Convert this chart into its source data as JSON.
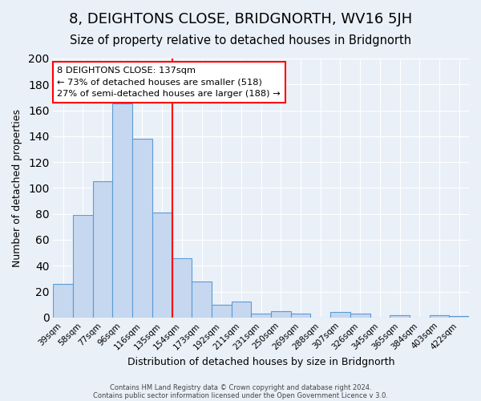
{
  "title": "8, DEIGHTONS CLOSE, BRIDGNORTH, WV16 5JH",
  "subtitle": "Size of property relative to detached houses in Bridgnorth",
  "xlabel": "Distribution of detached houses by size in Bridgnorth",
  "ylabel": "Number of detached properties",
  "footer_line1": "Contains HM Land Registry data © Crown copyright and database right 2024.",
  "footer_line2": "Contains public sector information licensed under the Open Government Licence v 3.0.",
  "annotation_title": "8 DEIGHTONS CLOSE: 137sqm",
  "annotation_line1": "← 73% of detached houses are smaller (518)",
  "annotation_line2": "27% of semi-detached houses are larger (188) →",
  "bar_labels": [
    "39sqm",
    "58sqm",
    "77sqm",
    "96sqm",
    "116sqm",
    "135sqm",
    "154sqm",
    "173sqm",
    "192sqm",
    "211sqm",
    "231sqm",
    "250sqm",
    "269sqm",
    "288sqm",
    "307sqm",
    "326sqm",
    "345sqm",
    "365sqm",
    "384sqm",
    "403sqm",
    "422sqm"
  ],
  "bar_values": [
    26,
    79,
    105,
    165,
    138,
    81,
    46,
    28,
    10,
    12,
    3,
    5,
    3,
    0,
    4,
    3,
    0,
    2,
    0,
    2,
    1
  ],
  "bar_color": "#c5d8f0",
  "bar_edge_color": "#5b9bd5",
  "reference_line_color": "red",
  "ylim": [
    0,
    200
  ],
  "yticks": [
    0,
    20,
    40,
    60,
    80,
    100,
    120,
    140,
    160,
    180,
    200
  ],
  "background_color": "#eaf0f8",
  "plot_background": "#eaf0f8",
  "grid_color": "#ffffff",
  "annotation_box_edge": "red",
  "title_fontsize": 13,
  "subtitle_fontsize": 10.5
}
